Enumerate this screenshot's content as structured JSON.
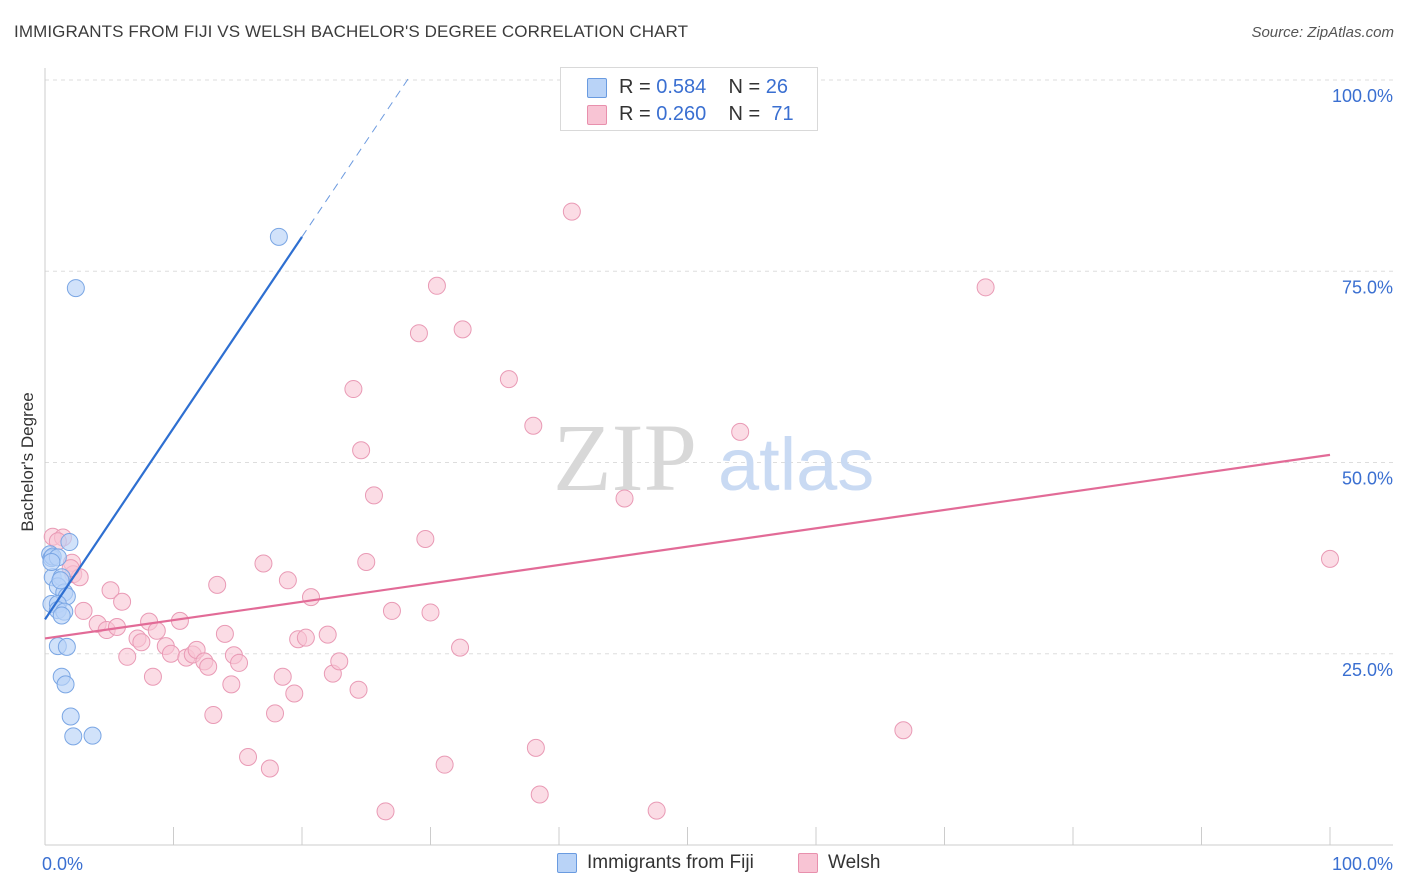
{
  "header": {
    "title": "IMMIGRANTS FROM FIJI VS WELSH BACHELOR'S DEGREE CORRELATION CHART",
    "source": "Source: ZipAtlas.com"
  },
  "watermark": {
    "zip": "ZIP",
    "atlas": "atlas"
  },
  "legend": {
    "r_label": "R =",
    "n_label": "N =",
    "rows": [
      {
        "r": "0.584",
        "n": "26",
        "color": "#b9d3f7",
        "stroke": "#6a9be0"
      },
      {
        "r": "0.260",
        "n": "71",
        "color": "#f8c4d4",
        "stroke": "#e890ad"
      }
    ]
  },
  "colors": {
    "fiji_fill": "#b9d3f7",
    "fiji_stroke": "#7aa6e4",
    "fiji_line": "#2e6fd1",
    "welsh_fill": "#f8c4d4",
    "welsh_stroke": "#e99ab5",
    "welsh_line": "#e26b97",
    "axis_text": "#3a6fd1",
    "grid": "#dddddd"
  },
  "chart_data": {
    "type": "scatter",
    "title": "IMMIGRANTS FROM FIJI VS WELSH BACHELOR'S DEGREE CORRELATION CHART",
    "xlabel": "",
    "ylabel": "Bachelor's Degree",
    "xlim": [
      0,
      100
    ],
    "ylim": [
      0,
      100
    ],
    "x_tick_labels": [
      "0.0%",
      "100.0%"
    ],
    "y_tick_values": [
      25,
      50,
      75,
      100
    ],
    "y_tick_labels": [
      "25.0%",
      "50.0%",
      "75.0%",
      "100.0%"
    ],
    "series": [
      {
        "name": "Immigrants from Fiji",
        "r": 0.584,
        "n": 26,
        "trend": {
          "x0": 0.0,
          "y0": 29.5,
          "x1": 20.0,
          "y1": 79.5,
          "dash_to_x": 28.5
        },
        "points": [
          [
            0.4,
            38.0
          ],
          [
            0.5,
            37.5
          ],
          [
            0.6,
            37.7
          ],
          [
            1.0,
            37.6
          ],
          [
            1.9,
            39.6
          ],
          [
            0.6,
            35.0
          ],
          [
            1.3,
            35.0
          ],
          [
            1.0,
            33.8
          ],
          [
            1.5,
            33.0
          ],
          [
            1.7,
            32.5
          ],
          [
            0.5,
            31.5
          ],
          [
            1.0,
            31.5
          ],
          [
            1.0,
            30.7
          ],
          [
            1.5,
            30.5
          ],
          [
            1.3,
            30.0
          ],
          [
            1.0,
            26.0
          ],
          [
            1.7,
            25.9
          ],
          [
            1.3,
            22.0
          ],
          [
            1.6,
            21.0
          ],
          [
            2.0,
            16.8
          ],
          [
            2.2,
            14.2
          ],
          [
            3.7,
            14.3
          ],
          [
            2.4,
            72.8
          ],
          [
            18.2,
            79.5
          ],
          [
            0.5,
            37.0
          ],
          [
            1.2,
            34.6
          ]
        ]
      },
      {
        "name": "Welsh",
        "r": 0.26,
        "n": 71,
        "trend": {
          "x0": 0.0,
          "y0": 27.0,
          "x1": 100.0,
          "y1": 51.0
        },
        "points": [
          [
            0.6,
            40.3
          ],
          [
            1.4,
            40.2
          ],
          [
            2.1,
            36.9
          ],
          [
            2.2,
            35.4
          ],
          [
            2.7,
            35.0
          ],
          [
            5.1,
            33.3
          ],
          [
            6.0,
            31.8
          ],
          [
            3.0,
            30.6
          ],
          [
            4.1,
            28.9
          ],
          [
            4.8,
            28.1
          ],
          [
            5.6,
            28.5
          ],
          [
            7.2,
            27.0
          ],
          [
            7.5,
            26.5
          ],
          [
            8.1,
            29.2
          ],
          [
            8.7,
            28.0
          ],
          [
            6.4,
            24.6
          ],
          [
            8.4,
            22.0
          ],
          [
            9.4,
            26.0
          ],
          [
            9.8,
            25.0
          ],
          [
            10.5,
            29.3
          ],
          [
            11.0,
            24.5
          ],
          [
            11.5,
            24.9
          ],
          [
            11.8,
            25.5
          ],
          [
            12.4,
            24.0
          ],
          [
            12.7,
            23.3
          ],
          [
            13.1,
            17.0
          ],
          [
            13.4,
            34.0
          ],
          [
            14.0,
            27.6
          ],
          [
            14.5,
            21.0
          ],
          [
            14.7,
            24.8
          ],
          [
            15.1,
            23.8
          ],
          [
            15.8,
            11.5
          ],
          [
            17.0,
            36.8
          ],
          [
            17.5,
            10.0
          ],
          [
            17.9,
            17.2
          ],
          [
            18.5,
            22.0
          ],
          [
            18.9,
            34.6
          ],
          [
            19.4,
            19.8
          ],
          [
            19.7,
            26.9
          ],
          [
            20.3,
            27.1
          ],
          [
            20.7,
            32.4
          ],
          [
            22.0,
            27.5
          ],
          [
            22.4,
            22.4
          ],
          [
            22.9,
            24.0
          ],
          [
            24.0,
            59.6
          ],
          [
            24.4,
            20.3
          ],
          [
            24.6,
            51.6
          ],
          [
            25.0,
            37.0
          ],
          [
            25.6,
            45.7
          ],
          [
            26.5,
            4.4
          ],
          [
            27.0,
            30.6
          ],
          [
            29.1,
            66.9
          ],
          [
            29.6,
            40.0
          ],
          [
            30.0,
            30.4
          ],
          [
            30.5,
            73.1
          ],
          [
            31.1,
            10.5
          ],
          [
            32.5,
            67.4
          ],
          [
            32.3,
            25.8
          ],
          [
            36.1,
            60.9
          ],
          [
            38.0,
            54.8
          ],
          [
            38.2,
            12.7
          ],
          [
            38.5,
            6.6
          ],
          [
            41.0,
            82.8
          ],
          [
            45.1,
            45.3
          ],
          [
            47.6,
            4.5
          ],
          [
            54.1,
            54.0
          ],
          [
            66.8,
            15.0
          ],
          [
            73.2,
            72.9
          ],
          [
            100.0,
            37.4
          ],
          [
            1.0,
            39.7
          ],
          [
            2.0,
            36.2
          ]
        ]
      }
    ]
  },
  "bottom_legend": {
    "items": [
      {
        "label": "Immigrants from Fiji"
      },
      {
        "label": "Welsh"
      }
    ]
  }
}
